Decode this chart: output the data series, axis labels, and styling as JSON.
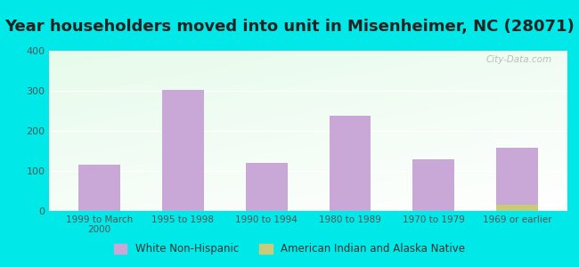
{
  "title": "Year householders moved into unit in Misenheimer, NC (28071)",
  "categories": [
    "1999 to March\n2000",
    "1995 to 1998",
    "1990 to 1994",
    "1980 to 1989",
    "1970 to 1979",
    "1969 or earlier"
  ],
  "white_non_hispanic": [
    115,
    302,
    119,
    238,
    130,
    158
  ],
  "american_indian": [
    0,
    0,
    0,
    0,
    0,
    15
  ],
  "bar_color_white": "#c9a8d8",
  "bar_color_indian": "#c8cc7a",
  "background_outer": "#00e8e8",
  "ylim": [
    0,
    400
  ],
  "yticks": [
    0,
    100,
    200,
    300,
    400
  ],
  "watermark": "City-Data.com",
  "legend_white": "White Non-Hispanic",
  "legend_indian": "American Indian and Alaska Native",
  "title_fontsize": 13,
  "bar_width": 0.5
}
